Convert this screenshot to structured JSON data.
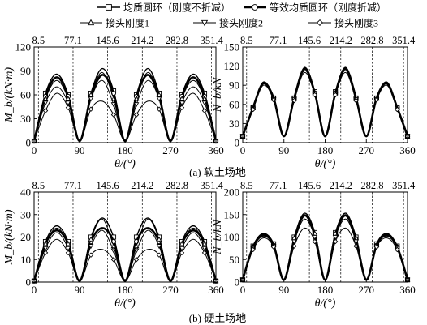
{
  "legend": [
    {
      "name": "均质圆环（刚度不折减）",
      "marker": "square",
      "width": 1.4
    },
    {
      "name": "等效均质圆环（刚度折减）",
      "marker": "circle",
      "width": 2.6
    },
    {
      "name": "接头刚度1",
      "marker": "triangle-up",
      "width": 1.0
    },
    {
      "name": "接头刚度2",
      "marker": "triangle-down",
      "width": 1.0
    },
    {
      "name": "接头刚度3",
      "marker": "diamond",
      "width": 1.0
    }
  ],
  "captions": {
    "soft": "(a) 软土场地",
    "hard": "(b) 硬土场地"
  },
  "chart_data": [
    {
      "id": "soft-moment",
      "type": "line",
      "ylabel": "M_b/(kN·m)",
      "xlabel": "θ/(°)",
      "xlim": [
        0,
        360
      ],
      "ylim": [
        0,
        120
      ],
      "xticks": [
        0,
        90,
        180,
        270,
        360
      ],
      "yticks": [
        0,
        30,
        60,
        90,
        120
      ],
      "joint_angles": [
        8.5,
        77.1,
        145.6,
        214.2,
        282.8,
        351.4
      ],
      "x": [
        0,
        22.5,
        45,
        67.5,
        90,
        112.5,
        135,
        157.5,
        180,
        202.5,
        225,
        247.5,
        270,
        292.5,
        315,
        337.5,
        360
      ],
      "series": [
        {
          "name": "均质圆环（刚度不折减）",
          "values": [
            2,
            62,
            86,
            60,
            2,
            62,
            93,
            65,
            2,
            60,
            93,
            62,
            2,
            60,
            86,
            62,
            2
          ]
        },
        {
          "name": "等效均质圆环（刚度折减）",
          "values": [
            2,
            58,
            82,
            58,
            2,
            58,
            85,
            62,
            2,
            58,
            85,
            58,
            2,
            58,
            82,
            58,
            2
          ]
        },
        {
          "name": "接头刚度1",
          "values": [
            2,
            55,
            78,
            55,
            2,
            60,
            88,
            55,
            2,
            55,
            88,
            60,
            2,
            55,
            78,
            55,
            2
          ]
        },
        {
          "name": "接头刚度2",
          "values": [
            2,
            50,
            70,
            50,
            2,
            55,
            78,
            48,
            2,
            48,
            78,
            55,
            2,
            50,
            70,
            50,
            2
          ]
        },
        {
          "name": "接头刚度3",
          "values": [
            2,
            40,
            62,
            44,
            2,
            42,
            52,
            35,
            2,
            35,
            52,
            42,
            2,
            44,
            62,
            40,
            2
          ]
        }
      ]
    },
    {
      "id": "soft-force",
      "type": "line",
      "ylabel": "N_b/kN",
      "xlabel": "θ/(°)",
      "xlim": [
        0,
        360
      ],
      "ylim": [
        0,
        150
      ],
      "xticks": [
        0,
        90,
        180,
        270,
        360
      ],
      "yticks": [
        0,
        30,
        60,
        90,
        120,
        150
      ],
      "joint_angles": [
        8.5,
        77.1,
        145.6,
        214.2,
        282.8,
        351.4
      ],
      "x": [
        0,
        22.5,
        45,
        67.5,
        90,
        112.5,
        135,
        157.5,
        180,
        202.5,
        225,
        247.5,
        270,
        292.5,
        315,
        337.5,
        360
      ],
      "series": [
        {
          "name": "均质圆环（刚度不折减）",
          "values": [
            10,
            55,
            95,
            70,
            10,
            70,
            118,
            80,
            10,
            80,
            118,
            70,
            10,
            70,
            95,
            55,
            10
          ]
        },
        {
          "name": "等效均质圆环（刚度折减）",
          "values": [
            10,
            55,
            93,
            70,
            10,
            70,
            116,
            78,
            10,
            78,
            116,
            70,
            10,
            70,
            93,
            55,
            10
          ]
        },
        {
          "name": "接头刚度1",
          "values": [
            10,
            54,
            93,
            69,
            10,
            69,
            115,
            78,
            10,
            78,
            115,
            69,
            10,
            69,
            93,
            54,
            10
          ]
        },
        {
          "name": "接头刚度2",
          "values": [
            10,
            53,
            92,
            68,
            10,
            68,
            113,
            77,
            10,
            77,
            113,
            68,
            10,
            68,
            92,
            53,
            10
          ]
        },
        {
          "name": "接头刚度3",
          "values": [
            10,
            52,
            90,
            67,
            10,
            66,
            110,
            75,
            10,
            75,
            110,
            66,
            10,
            67,
            90,
            52,
            10
          ]
        }
      ]
    },
    {
      "id": "hard-moment",
      "type": "line",
      "ylabel": "M_b/(kN·m)",
      "xlabel": "θ/(°)",
      "xlim": [
        0,
        360
      ],
      "ylim": [
        0,
        40
      ],
      "xticks": [
        0,
        90,
        180,
        270,
        360
      ],
      "yticks": [
        0,
        10,
        20,
        30,
        40
      ],
      "joint_angles": [
        8.5,
        77.1,
        145.6,
        214.2,
        282.8,
        351.4
      ],
      "x": [
        0,
        22.5,
        45,
        67.5,
        90,
        112.5,
        135,
        157.5,
        180,
        202.5,
        225,
        247.5,
        270,
        292.5,
        315,
        337.5,
        360
      ],
      "series": [
        {
          "name": "均质圆环（刚度不折减）",
          "values": [
            0.5,
            18,
            25,
            18,
            0.5,
            20,
            28.5,
            20,
            0.5,
            20,
            28.5,
            20,
            0.5,
            18,
            25,
            18,
            0.5
          ]
        },
        {
          "name": "等效均质圆环（刚度折减）",
          "values": [
            0.5,
            17,
            23,
            17,
            0.5,
            18,
            24,
            18,
            0.5,
            18,
            24,
            18,
            0.5,
            17,
            23,
            17,
            0.5
          ]
        },
        {
          "name": "接头刚度1",
          "values": [
            0.5,
            17,
            24,
            17,
            0.5,
            19,
            28,
            16,
            0.5,
            16,
            28,
            19,
            0.5,
            17,
            24,
            17,
            0.5
          ]
        },
        {
          "name": "接头刚度2",
          "values": [
            0.5,
            15,
            22,
            15,
            0.5,
            16,
            23,
            14,
            0.5,
            14,
            23,
            16,
            0.5,
            15,
            22,
            15,
            0.5
          ]
        },
        {
          "name": "接头刚度3",
          "values": [
            0.5,
            13,
            19,
            13,
            0.5,
            12,
            14.5,
            10,
            0.5,
            10,
            14.5,
            12,
            0.5,
            13,
            19,
            13,
            0.5
          ]
        }
      ]
    },
    {
      "id": "hard-force",
      "type": "line",
      "ylabel": "N_b/kN",
      "xlabel": "θ/(°)",
      "xlim": [
        0,
        360
      ],
      "ylim": [
        0,
        200
      ],
      "xticks": [
        0,
        90,
        180,
        270,
        360
      ],
      "yticks": [
        0,
        50,
        100,
        150,
        200
      ],
      "joint_angles": [
        8.5,
        77.1,
        145.6,
        214.2,
        282.8,
        351.4
      ],
      "x": [
        0,
        22.5,
        45,
        67.5,
        90,
        112.5,
        135,
        157.5,
        180,
        202.5,
        225,
        247.5,
        270,
        292.5,
        315,
        337.5,
        360
      ],
      "series": [
        {
          "name": "均质圆环（刚度不折减）",
          "values": [
            5,
            80,
            108,
            85,
            5,
            100,
            153,
            110,
            5,
            110,
            153,
            100,
            5,
            85,
            108,
            80,
            5
          ]
        },
        {
          "name": "等效均质圆环（刚度折减）",
          "values": [
            5,
            78,
            105,
            82,
            5,
            95,
            148,
            105,
            5,
            105,
            148,
            95,
            5,
            82,
            105,
            78,
            5
          ]
        },
        {
          "name": "接头刚度1",
          "values": [
            5,
            78,
            105,
            82,
            5,
            98,
            150,
            108,
            5,
            108,
            150,
            98,
            5,
            82,
            105,
            78,
            5
          ]
        },
        {
          "name": "接头刚度2",
          "values": [
            5,
            75,
            102,
            80,
            5,
            90,
            140,
            100,
            5,
            100,
            140,
            90,
            5,
            80,
            102,
            75,
            5
          ]
        },
        {
          "name": "接头刚度3",
          "values": [
            5,
            72,
            98,
            78,
            5,
            80,
            120,
            90,
            5,
            90,
            120,
            80,
            5,
            78,
            98,
            72,
            5
          ]
        }
      ]
    }
  ]
}
